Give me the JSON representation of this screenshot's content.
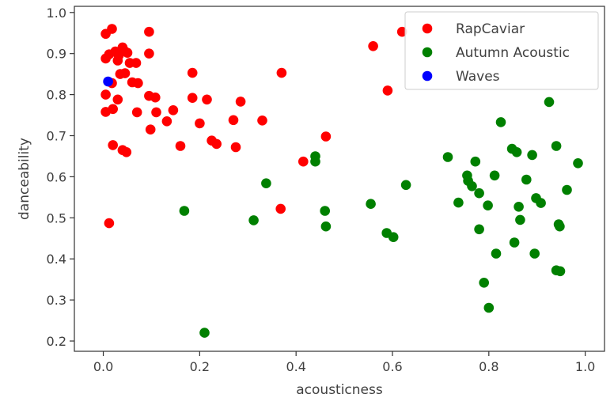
{
  "chart_data": {
    "type": "scatter",
    "title": "",
    "xlabel": "acousticness",
    "ylabel": "danceability",
    "xlim": [
      -0.06,
      1.04
    ],
    "ylim": [
      0.175,
      1.015
    ],
    "xticks": [
      "0.0",
      "0.2",
      "0.4",
      "0.6",
      "0.8",
      "1.0"
    ],
    "yticks": [
      "0.2",
      "0.3",
      "0.4",
      "0.5",
      "0.6",
      "0.7",
      "0.8",
      "0.9",
      "1.0"
    ],
    "grid": false,
    "legend_position": "top-right",
    "series": [
      {
        "name": "RapCaviar",
        "color": "#ff0000",
        "points": [
          [
            0.005,
            0.948
          ],
          [
            0.018,
            0.96
          ],
          [
            0.005,
            0.888
          ],
          [
            0.012,
            0.898
          ],
          [
            0.025,
            0.905
          ],
          [
            0.032,
            0.895
          ],
          [
            0.04,
            0.915
          ],
          [
            0.045,
            0.905
          ],
          [
            0.05,
            0.902
          ],
          [
            0.03,
            0.883
          ],
          [
            0.055,
            0.877
          ],
          [
            0.095,
            0.953
          ],
          [
            0.095,
            0.9
          ],
          [
            0.068,
            0.877
          ],
          [
            0.035,
            0.85
          ],
          [
            0.045,
            0.852
          ],
          [
            0.018,
            0.828
          ],
          [
            0.06,
            0.83
          ],
          [
            0.072,
            0.828
          ],
          [
            0.005,
            0.8
          ],
          [
            0.03,
            0.788
          ],
          [
            0.095,
            0.797
          ],
          [
            0.108,
            0.793
          ],
          [
            0.005,
            0.758
          ],
          [
            0.02,
            0.765
          ],
          [
            0.07,
            0.757
          ],
          [
            0.11,
            0.757
          ],
          [
            0.145,
            0.762
          ],
          [
            0.098,
            0.715
          ],
          [
            0.132,
            0.735
          ],
          [
            0.185,
            0.853
          ],
          [
            0.185,
            0.792
          ],
          [
            0.215,
            0.788
          ],
          [
            0.2,
            0.73
          ],
          [
            0.16,
            0.675
          ],
          [
            0.225,
            0.688
          ],
          [
            0.235,
            0.68
          ],
          [
            0.27,
            0.738
          ],
          [
            0.285,
            0.783
          ],
          [
            0.275,
            0.672
          ],
          [
            0.33,
            0.737
          ],
          [
            0.37,
            0.853
          ],
          [
            0.02,
            0.677
          ],
          [
            0.04,
            0.665
          ],
          [
            0.048,
            0.66
          ],
          [
            0.012,
            0.487
          ],
          [
            0.415,
            0.637
          ],
          [
            0.462,
            0.698
          ],
          [
            0.368,
            0.522
          ],
          [
            0.56,
            0.918
          ],
          [
            0.59,
            0.81
          ],
          [
            0.62,
            0.953
          ]
        ]
      },
      {
        "name": "Autumn Acoustic",
        "color": "#008000",
        "points": [
          [
            0.168,
            0.517
          ],
          [
            0.21,
            0.22
          ],
          [
            0.312,
            0.494
          ],
          [
            0.338,
            0.584
          ],
          [
            0.44,
            0.65
          ],
          [
            0.44,
            0.637
          ],
          [
            0.46,
            0.517
          ],
          [
            0.462,
            0.479
          ],
          [
            0.555,
            0.534
          ],
          [
            0.588,
            0.463
          ],
          [
            0.602,
            0.453
          ],
          [
            0.628,
            0.58
          ],
          [
            0.715,
            0.648
          ],
          [
            0.737,
            0.537
          ],
          [
            0.755,
            0.603
          ],
          [
            0.757,
            0.59
          ],
          [
            0.765,
            0.577
          ],
          [
            0.772,
            0.637
          ],
          [
            0.78,
            0.56
          ],
          [
            0.78,
            0.472
          ],
          [
            0.79,
            0.342
          ],
          [
            0.798,
            0.53
          ],
          [
            0.8,
            0.281
          ],
          [
            0.812,
            0.603
          ],
          [
            0.815,
            0.413
          ],
          [
            0.825,
            0.733
          ],
          [
            0.848,
            0.668
          ],
          [
            0.853,
            0.44
          ],
          [
            0.858,
            0.66
          ],
          [
            0.862,
            0.527
          ],
          [
            0.865,
            0.495
          ],
          [
            0.878,
            0.593
          ],
          [
            0.89,
            0.653
          ],
          [
            0.895,
            0.413
          ],
          [
            0.898,
            0.548
          ],
          [
            0.908,
            0.536
          ],
          [
            0.925,
            0.782
          ],
          [
            0.94,
            0.675
          ],
          [
            0.94,
            0.372
          ],
          [
            0.945,
            0.484
          ],
          [
            0.947,
            0.479
          ],
          [
            0.948,
            0.37
          ],
          [
            0.962,
            0.568
          ],
          [
            0.985,
            0.633
          ]
        ]
      },
      {
        "name": "Waves",
        "color": "#0000ff",
        "points": [
          [
            0.01,
            0.832
          ]
        ]
      }
    ]
  }
}
